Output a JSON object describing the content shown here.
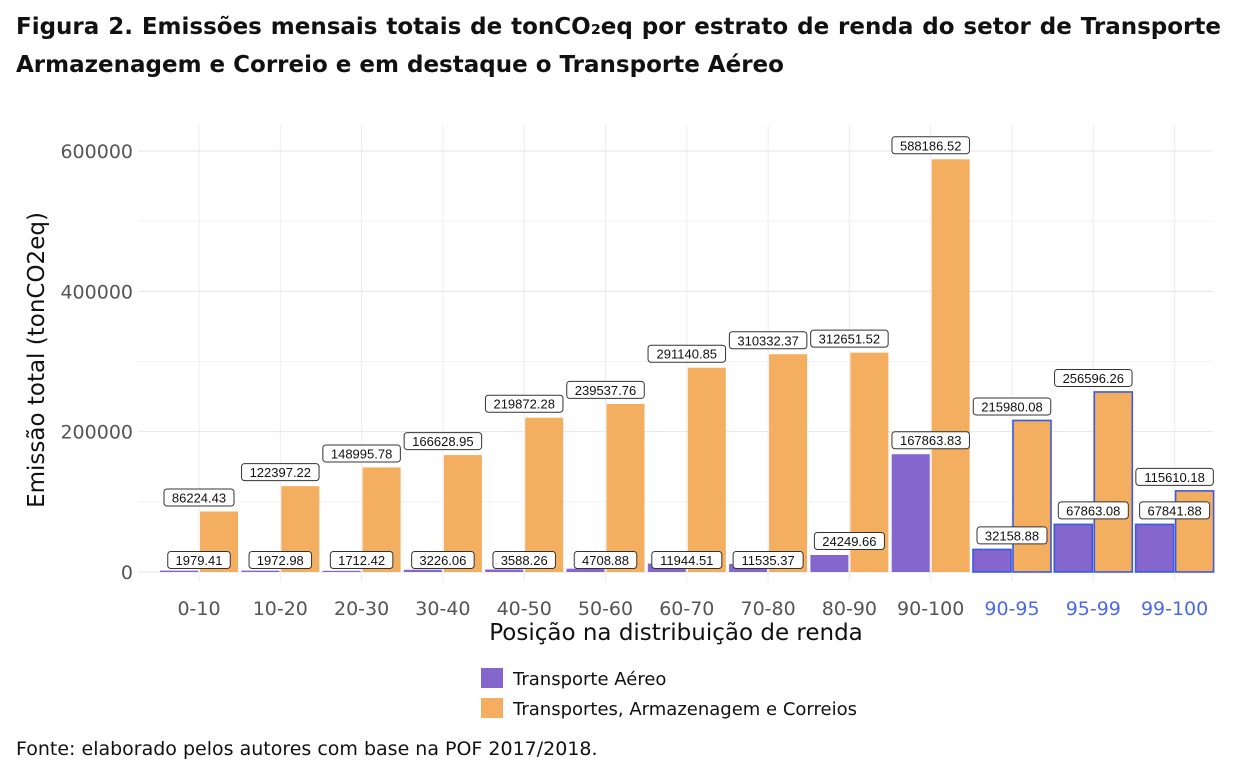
{
  "figure_title": "Figura 2. Emissões mensais totais de tonCO₂eq por estrato de renda do setor de Transporte Armazenagem e Correio e em destaque o Transporte Aéreo",
  "source": "Fonte: elaborado pelos autores com base na POF 2017/2018.",
  "chart_data": {
    "type": "bar",
    "xlabel": "Posição na distribuição de renda",
    "ylabel": "Emissão total (tonCO2eq)",
    "ylim": [
      0,
      600000
    ],
    "yticks": [
      0,
      200000,
      400000,
      600000
    ],
    "grid": true,
    "legend_position": "bottom",
    "categories": [
      "0-10",
      "10-20",
      "20-30",
      "30-40",
      "40-50",
      "50-60",
      "60-70",
      "70-80",
      "80-90",
      "90-100",
      "90-95",
      "95-99",
      "99-100"
    ],
    "highlighted_categories": [
      "90-95",
      "95-99",
      "99-100"
    ],
    "colors": {
      "air": "#8466cc",
      "transport": "#f4ae60",
      "highlight_outline": "#3a5be0",
      "highlight_tick": "#4a6ae8"
    },
    "series": [
      {
        "name": "Transporte Aéreo",
        "values": [
          1979.41,
          1972.98,
          1712.42,
          3226.06,
          3588.26,
          4708.88,
          11944.51,
          11535.37,
          24249.66,
          167863.83,
          32158.88,
          67863.08,
          67841.88
        ],
        "labels": [
          "1979.41",
          "1972.98",
          "1712.42",
          "3226.06",
          "3588.26",
          "4708.88",
          "11944.51",
          "11535.37",
          "24249.66",
          "167863.83",
          "32158.88",
          "67863.08",
          "67841.88"
        ]
      },
      {
        "name": "Transportes, Armazenagem e Correios",
        "values": [
          86224.43,
          122397.22,
          148995.78,
          166628.95,
          219872.28,
          239537.76,
          291140.85,
          310332.37,
          312651.52,
          588186.52,
          215980.08,
          256596.26,
          115610.18
        ],
        "labels": [
          "86224.43",
          "122397.22",
          "148995.78",
          "166628.95",
          "219872.28",
          "239537.76",
          "291140.85",
          "310332.37",
          "312651.52",
          "588186.52",
          "215980.08",
          "256596.26",
          "115610.18"
        ]
      }
    ]
  }
}
